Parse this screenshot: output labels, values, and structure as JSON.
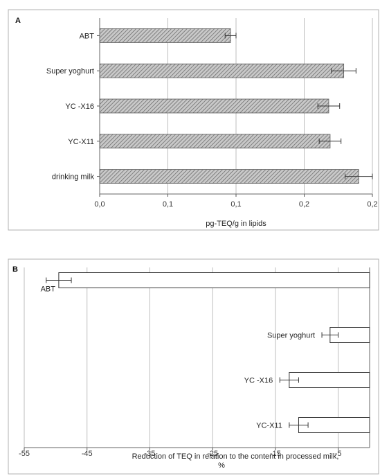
{
  "chart_data": [
    {
      "panel_label": "A",
      "type": "bar",
      "orientation": "horizontal",
      "categories": [
        "ABT",
        "Super yoghurt",
        "YC -X16",
        "YC-X11",
        "drinking milk"
      ],
      "values": [
        0.096,
        0.179,
        0.168,
        0.169,
        0.19
      ],
      "errors": [
        0.004,
        0.009,
        0.008,
        0.008,
        0.01
      ],
      "xlabel": "pg-TEQ/g in lipids",
      "xlim": [
        0,
        0.2
      ],
      "xticks": [
        0,
        0.05,
        0.1,
        0.15,
        0.2
      ],
      "xtick_labels": [
        "0,0",
        "0,1",
        "0,1",
        "0,2",
        "0,2"
      ],
      "grid": "vertical",
      "bar_fill": "hatched",
      "colors": {
        "bar_fill": "#c8c8c8",
        "hatch": "#6e6e6e",
        "grid": "#bdbdbd",
        "frame": "#b0b0b0"
      }
    },
    {
      "panel_label": "B",
      "type": "bar",
      "orientation": "horizontal",
      "categories": [
        "ABT",
        "Super yoghurt",
        "YC -X16",
        "YC-X11"
      ],
      "values": [
        -49.5,
        -6.3,
        -12.8,
        -11.3
      ],
      "errors": [
        2,
        1.3,
        1.5,
        1.5
      ],
      "xlabel": "Reduction of TEQ in relation to the content in processed milk, %",
      "xlim": [
        -55,
        0
      ],
      "xticks": [
        -55,
        -45,
        -35,
        -25,
        -15,
        -5
      ],
      "xtick_labels": [
        "-55",
        "-45",
        "-35",
        "-25",
        "-15",
        "-5"
      ],
      "grid": "vertical",
      "bar_fill": "white",
      "colors": {
        "bar_fill": "#ffffff",
        "grid": "#bdbdbd",
        "frame": "#b0b0b0"
      }
    }
  ]
}
